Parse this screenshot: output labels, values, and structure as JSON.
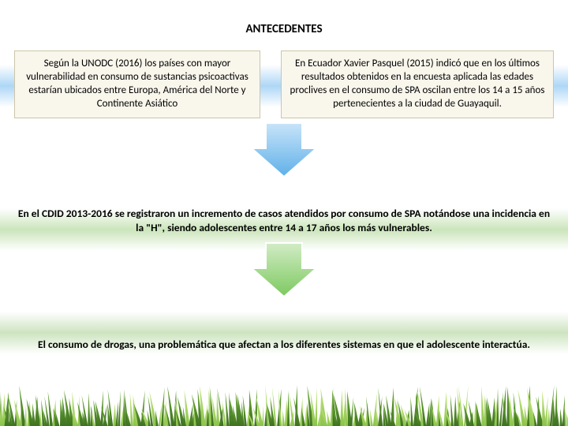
{
  "title": "ANTECEDENTES",
  "box_left": "Según la UNODC (2016) los países con mayor vulnerabilidad en consumo de sustancias psicoactivas estarían ubicados entre Europa, América del Norte y Continente Asiático",
  "box_right": "En Ecuador Xavier Pasquel (2015) indicó que en los últimos resultados obtenidos en la encuesta aplicada las edades proclives en el consumo de SPA oscilan entre los 14 a 15 años pertenecientes a la ciudad de Guayaquil.",
  "mid_text_1": "En el CDID 2013-2016 se registraron un incremento de casos atendidos por consumo de SPA notándose una incidencia en la \"H\", siendo adolescentes entre 14 a 17 años los más vulnerables.",
  "mid_text_2": "El consumo de drogas, una problemática que afectan a los diferentes sistemas en que el adolescente interactúa.",
  "colors": {
    "box_bg": "#f9f6ec",
    "box_border": "#ccc6a8",
    "band_blue": "#9fd0f5",
    "band_green": "#c6e2b4",
    "arrow1_top": "#b9dff7",
    "arrow1_bottom": "#5fb0e8",
    "arrow2_top": "#c5e5b8",
    "arrow2_bottom": "#7cc95f",
    "grass_light": "#b8e068",
    "grass_dark": "#4e8a2a"
  },
  "arrows": [
    {
      "gradient_top": "#c8e4f9",
      "gradient_bottom": "#5fb0e8",
      "stroke": "#ffffff"
    },
    {
      "gradient_top": "#d2ecc5",
      "gradient_bottom": "#7cc95f",
      "stroke": "#ffffff"
    }
  ]
}
